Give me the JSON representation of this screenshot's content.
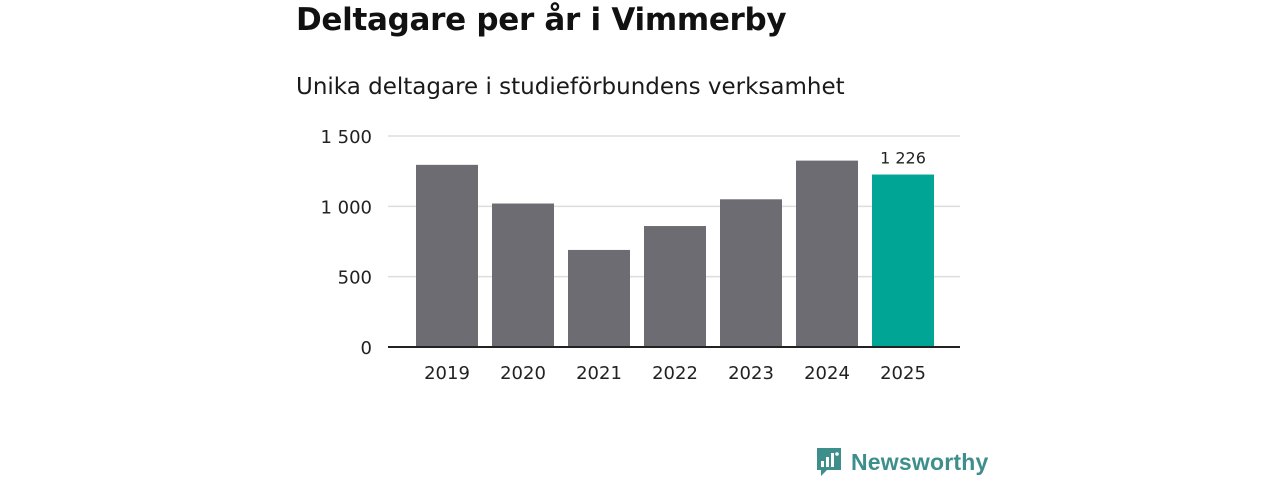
{
  "title": "Deltagare per år i Vimmerby",
  "subtitle": "Unika deltagare i studieförbundens verksamhet",
  "brand": {
    "name": "Newsworthy",
    "icon": "newsworthy-logo-icon",
    "color": "#3e8f8c"
  },
  "chart_data": {
    "type": "bar",
    "title": "Deltagare per år i Vimmerby",
    "subtitle": "Unika deltagare i studieförbundens verksamhet",
    "xlabel": "",
    "ylabel": "",
    "categories": [
      "2019",
      "2020",
      "2021",
      "2022",
      "2023",
      "2024",
      "2025"
    ],
    "values": [
      1295,
      1020,
      690,
      860,
      1050,
      1325,
      1226
    ],
    "ylim": [
      0,
      1500
    ],
    "yticks": [
      0,
      500,
      1000,
      1500
    ],
    "ytick_labels": [
      "0",
      "500",
      "1 000",
      "1 500"
    ],
    "grid": true,
    "highlight_index": 6,
    "highlight_label": "1 226",
    "colors": {
      "default": "#6d6c72",
      "highlight": "#00a596",
      "grid": "#dddddd",
      "axis": "#222222"
    }
  }
}
